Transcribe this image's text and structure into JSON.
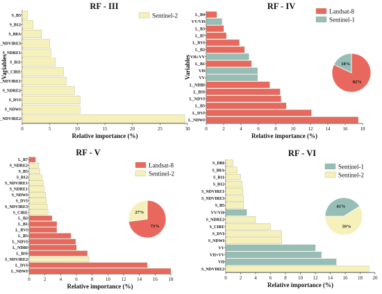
{
  "colors": {
    "landsat8": "#E8685E",
    "sentinel1": "#96BEB6",
    "sentinel2": "#F6F1BA",
    "bar_stroke": "#9a9a7a"
  },
  "chart_data": [
    {
      "id": "rf3",
      "type": "bar",
      "orientation": "horizontal",
      "title": "RF - III",
      "xlabel": "Relative importance (%)",
      "ylabel": "Variables",
      "xlim": [
        0,
        30
      ],
      "xticks": [
        0,
        5,
        10,
        15,
        20,
        25,
        30
      ],
      "legend": [
        {
          "name": "Sentinel-2",
          "color_key": "sentinel2"
        }
      ],
      "legend_position": "top-right",
      "categories": [
        "S_B5",
        "S_B12",
        "S_B8A",
        "S_NDVIRE3",
        "S_NDRE1",
        "S_B11",
        "S_CIRE",
        "S_NDVIRE1",
        "S_NDRE2",
        "S_DVI",
        "S_NDWI",
        "S_NDVIRE2"
      ],
      "values": [
        1,
        2,
        3.5,
        5,
        5.2,
        6,
        7.5,
        8,
        9.5,
        10.5,
        10.5,
        29.5
      ],
      "groups": [
        "sentinel2",
        "sentinel2",
        "sentinel2",
        "sentinel2",
        "sentinel2",
        "sentinel2",
        "sentinel2",
        "sentinel2",
        "sentinel2",
        "sentinel2",
        "sentinel2",
        "sentinel2"
      ]
    },
    {
      "id": "rf4",
      "type": "bar",
      "orientation": "horizontal",
      "title": "RF - IV",
      "xlabel": "Relative importance (%)",
      "ylabel": "Variables",
      "xlim": [
        0,
        18
      ],
      "xticks": [
        0,
        2,
        4,
        6,
        8,
        10,
        12,
        14,
        16,
        18
      ],
      "legend": [
        {
          "name": "Landsat-8",
          "color_key": "landsat8"
        },
        {
          "name": "Sentinel-1",
          "color_key": "sentinel1"
        }
      ],
      "legend_position": "top-right",
      "categories": [
        "L_B4",
        "VV/VH",
        "L_B3",
        "L_B7",
        "L_RVI",
        "L_B2",
        "VH+VV",
        "L_B1",
        "VH",
        "VV",
        "L_NDBI",
        "L_BSI",
        "L_NDVI",
        "L_B5",
        "L_DVI",
        "L_NDWI"
      ],
      "values": [
        1.2,
        1.8,
        2.0,
        2.3,
        3.8,
        4.4,
        4.9,
        5.2,
        5.9,
        5.9,
        7.3,
        8.5,
        8.6,
        9.2,
        12.1,
        17.5
      ],
      "groups": [
        "landsat8",
        "sentinel1",
        "landsat8",
        "landsat8",
        "landsat8",
        "landsat8",
        "sentinel1",
        "landsat8",
        "sentinel1",
        "sentinel1",
        "landsat8",
        "landsat8",
        "landsat8",
        "landsat8",
        "landsat8",
        "landsat8"
      ],
      "pie": {
        "slices": [
          {
            "color_key": "landsat8",
            "value": 82,
            "label": "82%"
          },
          {
            "color_key": "sentinel1",
            "value": 18,
            "label": "18%"
          }
        ]
      }
    },
    {
      "id": "rf5",
      "type": "bar",
      "orientation": "horizontal",
      "title": "RF - V",
      "xlabel": "Relative importance (%)",
      "ylabel": "",
      "xlim": [
        0,
        18
      ],
      "xticks": [
        0,
        2,
        4,
        6,
        8,
        10,
        12,
        14,
        16,
        18
      ],
      "legend": [
        {
          "name": "Landsat-8",
          "color_key": "landsat8"
        },
        {
          "name": "Sentinel-2",
          "color_key": "sentinel2"
        }
      ],
      "legend_position": "top-right",
      "categories": [
        "L_B7",
        "S_NDRE2",
        "S_B5",
        "S_B12",
        "S_NDVIRE1",
        "S_NDRE1",
        "S_NDWI",
        "S_DVI",
        "S_NDVIRE3",
        "S_CIRE",
        "L_B2",
        "L_B1",
        "L_RVI",
        "L_B5",
        "L_NDVI",
        "L_NDBI",
        "L_BSI",
        "S_NDVIRE2",
        "L_DVI",
        "L_NDWI"
      ],
      "values": [
        0.8,
        1.2,
        1.4,
        1.6,
        1.8,
        1.9,
        2.1,
        2.2,
        2.3,
        2.4,
        2.9,
        3.5,
        3.5,
        5.3,
        5.9,
        6.0,
        7.4,
        7.6,
        15.0,
        18.0
      ],
      "groups": [
        "landsat8",
        "sentinel2",
        "sentinel2",
        "sentinel2",
        "sentinel2",
        "sentinel2",
        "sentinel2",
        "sentinel2",
        "sentinel2",
        "sentinel2",
        "landsat8",
        "landsat8",
        "landsat8",
        "landsat8",
        "landsat8",
        "landsat8",
        "landsat8",
        "sentinel2",
        "landsat8",
        "landsat8"
      ],
      "pie": {
        "slices": [
          {
            "color_key": "landsat8",
            "value": 73,
            "label": "73%"
          },
          {
            "color_key": "sentinel2",
            "value": 27,
            "label": "27%"
          }
        ]
      }
    },
    {
      "id": "rf6",
      "type": "bar",
      "orientation": "horizontal",
      "title": "RF - VI",
      "xlabel": "Relative importance (%)",
      "ylabel": "",
      "xlim": [
        0,
        20
      ],
      "xticks": [
        0,
        2,
        4,
        6,
        8,
        10,
        12,
        14,
        16,
        18,
        20
      ],
      "legend": [
        {
          "name": "Sentinel-1",
          "color_key": "sentinel1"
        },
        {
          "name": "Sentinel-2",
          "color_key": "sentinel2"
        }
      ],
      "legend_position": "top-right",
      "categories": [
        "S_DBI",
        "S_B8A",
        "S_B11",
        "S_B12",
        "S_NDVIRE1",
        "S_NDVIRE3",
        "S_B5",
        "VV/VH",
        "S_NDRE2",
        "S_CIRE",
        "S_DVI",
        "S_NDWI",
        "VV",
        "VH+VV",
        "VH",
        "S_NDVIRE2"
      ],
      "values": [
        1.0,
        1.5,
        2.0,
        2.2,
        2.3,
        2.4,
        2.4,
        2.8,
        4.0,
        6.0,
        7.5,
        7.5,
        12.0,
        12.8,
        14.8,
        19.2
      ],
      "groups": [
        "sentinel2",
        "sentinel2",
        "sentinel2",
        "sentinel2",
        "sentinel2",
        "sentinel2",
        "sentinel2",
        "sentinel1",
        "sentinel2",
        "sentinel2",
        "sentinel2",
        "sentinel2",
        "sentinel1",
        "sentinel1",
        "sentinel1",
        "sentinel2"
      ],
      "pie": {
        "slices": [
          {
            "color_key": "sentinel1",
            "value": 41,
            "label": "41%"
          },
          {
            "color_key": "sentinel2",
            "value": 59,
            "label": "59%"
          }
        ]
      }
    }
  ]
}
